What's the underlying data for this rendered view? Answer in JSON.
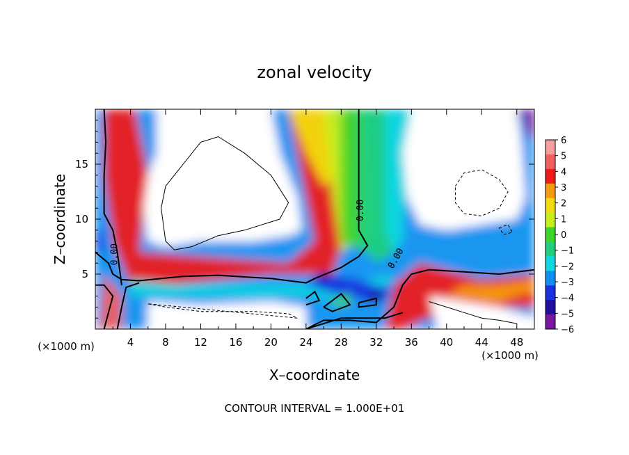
{
  "chart_data": {
    "type": "heatmap",
    "title": "zonal velocity",
    "xlabel": "X–coordinate",
    "ylabel": "Z–coordinate",
    "x_unit": "(×1000 m)",
    "y_unit": "(×1000 m)",
    "xlim": [
      0,
      50
    ],
    "ylim": [
      0,
      20
    ],
    "x_ticks": [
      4,
      8,
      12,
      16,
      20,
      24,
      28,
      32,
      36,
      40,
      44,
      48
    ],
    "y_ticks": [
      5,
      10,
      15
    ],
    "colorbar": {
      "levels": [
        6,
        5,
        4,
        3,
        2,
        1,
        0,
        -1,
        -2,
        -3,
        -4,
        -5,
        -6
      ],
      "labels": [
        "6",
        "5",
        "4",
        "3",
        "2",
        "1",
        "0",
        "−1",
        "−2",
        "−3",
        "−4",
        "−5",
        "−6"
      ]
    },
    "contour_label": "0.00",
    "contour_interval_text": "CONTOUR INTERVAL = 1.000E+01",
    "grid": false
  },
  "colors": {
    "pos_6": "#f4a0a0",
    "pos_5": "#f06060",
    "pos_4": "#ee1a1a",
    "pos_3": "#f59a10",
    "pos_2": "#f2dc10",
    "pos_1": "#c8ee1a",
    "zero": "#3fd42a",
    "neg_1": "#20d080",
    "neg_2": "#10d8e0",
    "neg_3": "#1090f0",
    "neg_4": "#1830e0",
    "neg_5": "#2010a0",
    "neg_6": "#7818a0"
  }
}
